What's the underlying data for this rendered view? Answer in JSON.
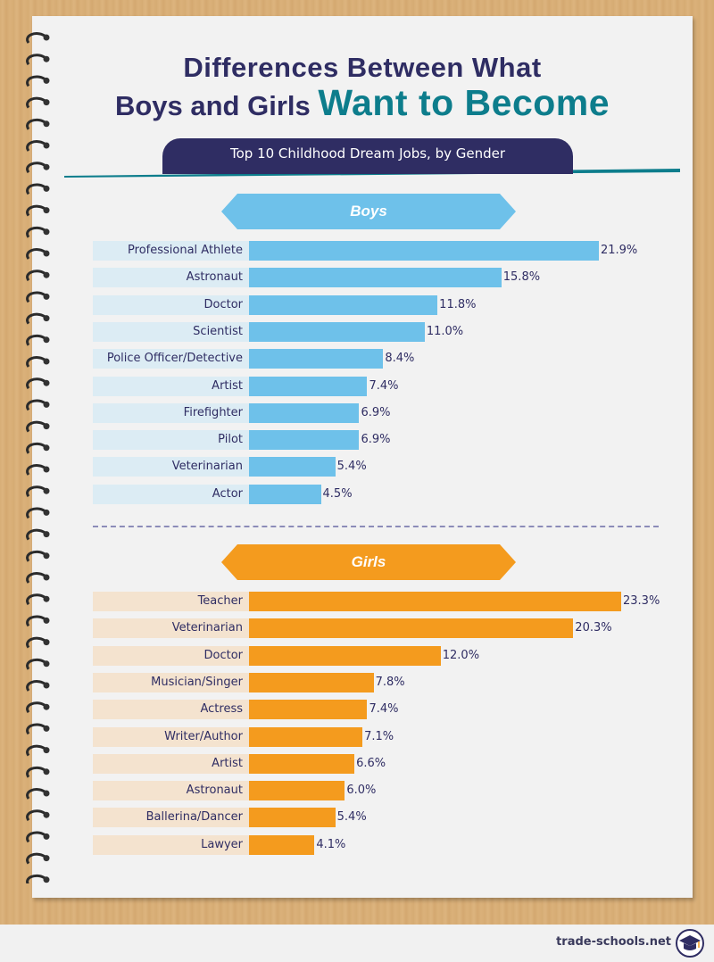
{
  "title": {
    "line1": "Differences Between What",
    "line2_start": "Boys and Girls",
    "line2_accent": "Want to Become"
  },
  "subtitle": "Top 10 Childhood Dream Jobs, by Gender",
  "footer": {
    "brand": "trade-schools.net"
  },
  "colors": {
    "navy": "#2f2d63",
    "teal": "#0d7d8c",
    "boys_bar": "#6ec1ea",
    "boys_bg": "#dcecf4",
    "girls_bar": "#f49b1e",
    "girls_bg": "#f4e3cf"
  },
  "chart_data": [
    {
      "type": "bar",
      "orientation": "horizontal",
      "title": "Boys",
      "categories": [
        "Professional Athlete",
        "Astronaut",
        "Doctor",
        "Scientist",
        "Police Officer/Detective",
        "Artist",
        "Firefighter",
        "Pilot",
        "Veterinarian",
        "Actor"
      ],
      "values": [
        21.9,
        15.8,
        11.8,
        11.0,
        8.4,
        7.4,
        6.9,
        6.9,
        5.4,
        4.5
      ],
      "labels": [
        "21.9%",
        "15.8%",
        "11.8%",
        "11.0%",
        "8.4%",
        "7.4%",
        "6.9%",
        "6.9%",
        "5.4%",
        "4.5%"
      ],
      "unit": "%"
    },
    {
      "type": "bar",
      "orientation": "horizontal",
      "title": "Girls",
      "categories": [
        "Teacher",
        "Veterinarian",
        "Doctor",
        "Musician/Singer",
        "Actress",
        "Writer/Author",
        "Artist",
        "Astronaut",
        "Ballerina/Dancer",
        "Lawyer"
      ],
      "values": [
        23.3,
        20.3,
        12.0,
        7.8,
        7.4,
        7.1,
        6.6,
        6.0,
        5.4,
        4.1
      ],
      "labels": [
        "23.3%",
        "20.3%",
        "12.0%",
        "7.8%",
        "7.4%",
        "7.1%",
        "6.6%",
        "6.0%",
        "5.4%",
        "4.1%"
      ],
      "unit": "%"
    }
  ]
}
